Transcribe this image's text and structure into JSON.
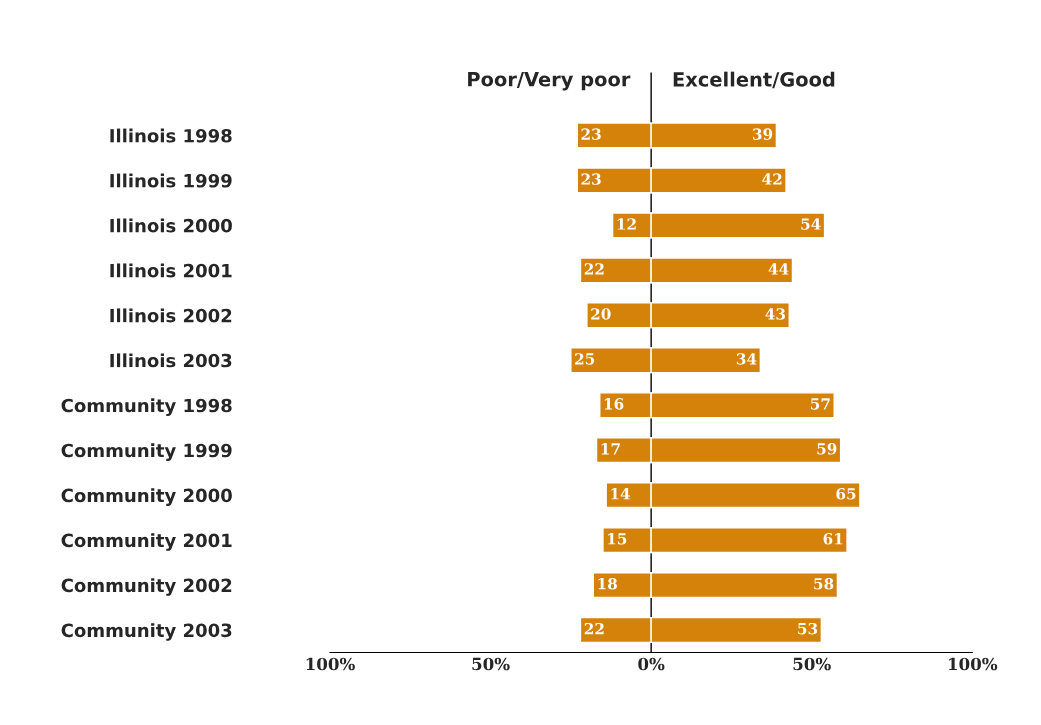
{
  "chart_data": {
    "type": "bar",
    "orientation": "horizontal",
    "categories": [
      "Illinois 1998",
      "Illinois 1999",
      "Illinois 2000",
      "Illinois 2001",
      "Illinois 2002",
      "Illinois 2003",
      "Community 1998",
      "Community 1999",
      "Community 2000",
      "Community 2001",
      "Community 2002",
      "Community 2003"
    ],
    "series": [
      {
        "name": "Poor/Very poor",
        "color": "#d4820a",
        "values": [
          23,
          23,
          12,
          22,
          20,
          25,
          16,
          17,
          14,
          15,
          18,
          22
        ],
        "base": [
          -23,
          -23,
          -12,
          -22,
          -20,
          -25,
          -16,
          -17,
          -14,
          -15,
          -18,
          -22
        ],
        "value_labels": [
          "23",
          "23",
          "12",
          "22",
          "20",
          "25",
          "16",
          "17",
          "14",
          "15",
          "18",
          "22"
        ]
      },
      {
        "name": "Excellent/Good",
        "color": "#d4820a",
        "values": [
          39,
          42,
          54,
          44,
          43,
          34,
          57,
          59,
          65,
          61,
          58,
          53
        ],
        "value_labels": [
          "39",
          "42",
          "54",
          "44",
          "43",
          "34",
          "57",
          "59",
          "65",
          "61",
          "58",
          "53"
        ]
      }
    ],
    "xlim": [
      -100,
      100
    ],
    "xticks": [
      {
        "value": -100,
        "label": "100%"
      },
      {
        "value": -50,
        "label": "50%"
      },
      {
        "value": 0,
        "label": "0%"
      },
      {
        "value": 50,
        "label": "50%"
      },
      {
        "value": 100,
        "label": "100%"
      }
    ],
    "ref_lines": [
      {
        "axis": "x",
        "value": 0,
        "color": "#000000"
      }
    ],
    "grid": false
  }
}
